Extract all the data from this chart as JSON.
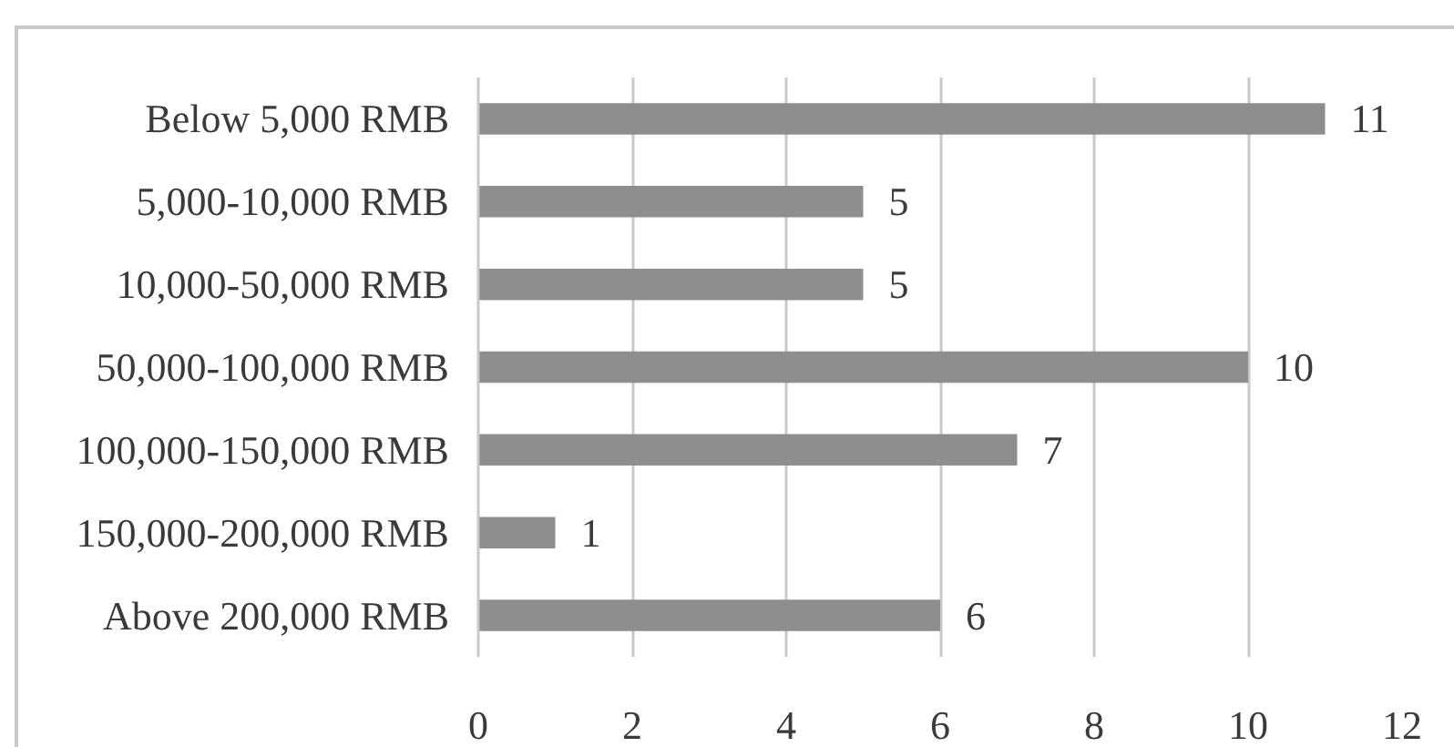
{
  "chart_data": {
    "type": "bar",
    "orientation": "horizontal",
    "categories": [
      "Below 5,000 RMB",
      "5,000-10,000 RMB",
      "10,000-50,000 RMB",
      "50,000-100,000 RMB",
      "100,000-150,000 RMB",
      "150,000-200,000 RMB",
      "Above 200,000 RMB"
    ],
    "values": [
      11,
      5,
      5,
      10,
      7,
      1,
      6
    ],
    "color": "#8e8e8e",
    "xlim": [
      0,
      12
    ],
    "xticks": [
      0,
      2,
      4,
      6,
      8,
      10,
      12
    ],
    "grid": "x",
    "data_labels": true
  }
}
